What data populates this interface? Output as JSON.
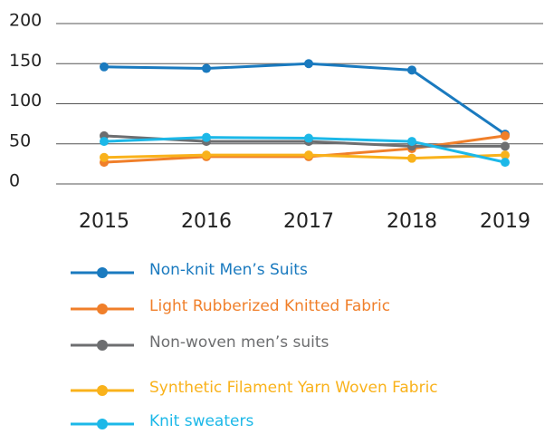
{
  "chart_data": {
    "type": "line",
    "categories": [
      "2015",
      "2016",
      "2017",
      "2018",
      "2019"
    ],
    "ylim": [
      0,
      200
    ],
    "yticks": [
      0,
      50,
      100,
      150,
      200
    ],
    "grid": true,
    "series": [
      {
        "name": "Non-knit Men’s Suits",
        "color": "#1a7abf",
        "values": [
          146,
          144,
          150,
          142,
          62
        ]
      },
      {
        "name": "Light Rubberized Knitted Fabric",
        "color": "#f07f2a",
        "values": [
          27,
          34,
          34,
          44,
          60
        ]
      },
      {
        "name": "Non-woven men’s suits",
        "color": "#6d6e70",
        "values": [
          60,
          53,
          53,
          47,
          47
        ]
      },
      {
        "name": "Synthetic Filament Yarn Woven Fabric",
        "color": "#f9b21b",
        "values": [
          33,
          36,
          36,
          32,
          36
        ]
      },
      {
        "name": "Knit sweaters",
        "color": "#1cb8e8",
        "values": [
          53,
          58,
          57,
          53,
          27
        ]
      }
    ]
  }
}
